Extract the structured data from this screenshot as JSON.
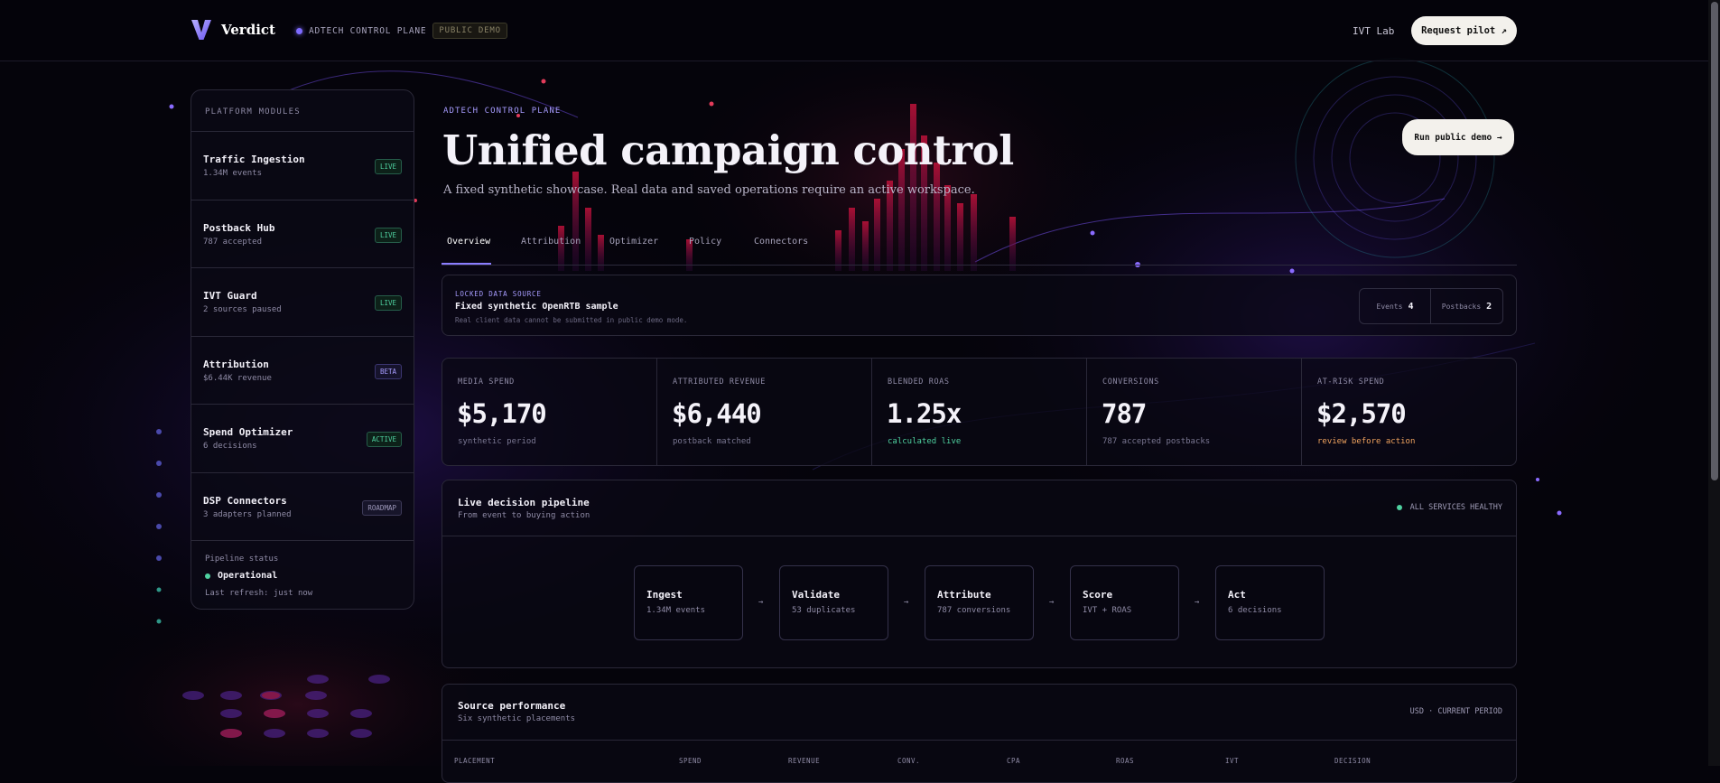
{
  "topbar": {
    "brand": "Verdict",
    "crumb": "ADTECH CONTROL PLANE",
    "badge": "PUBLIC DEMO",
    "ivt_link": "IVT Lab",
    "cta": "Request pilot ↗"
  },
  "sidebar": {
    "header": "PLATFORM MODULES",
    "modules": [
      {
        "title": "Traffic Ingestion",
        "sub": "1.34M events",
        "tag": "LIVE"
      },
      {
        "title": "Postback Hub",
        "sub": "787 accepted",
        "tag": "LIVE"
      },
      {
        "title": "IVT Guard",
        "sub": "2 sources paused",
        "tag": "LIVE"
      },
      {
        "title": "Attribution",
        "sub": "$6.44K revenue",
        "tag": "BETA"
      },
      {
        "title": "Spend Optimizer",
        "sub": "6 decisions",
        "tag": "ACTIVE"
      },
      {
        "title": "DSP Connectors",
        "sub": "3 adapters planned",
        "tag": "ROADMAP"
      }
    ],
    "status_label": "Pipeline status",
    "status_value": "Operational",
    "refresh": "Last refresh: just now"
  },
  "hero": {
    "eyebrow": "ADTECH CONTROL PLANE",
    "title": "Unified campaign control",
    "subtitle": "A fixed synthetic showcase. Real data and saved operations require an active workspace.",
    "demo_button": "Run public demo →"
  },
  "tabs": [
    "Overview",
    "Attribution",
    "Optimizer",
    "Policy",
    "Connectors"
  ],
  "data_source": {
    "eyebrow": "LOCKED DATA SOURCE",
    "title": "Fixed synthetic OpenRTB sample",
    "note": "Real client data cannot be submitted in public demo mode.",
    "events_label": "Events",
    "events_value": "4",
    "postbacks_label": "Postbacks",
    "postbacks_value": "2"
  },
  "stats": [
    {
      "label": "MEDIA SPEND",
      "value": "$5,170",
      "sub": "synthetic period",
      "color": "#7a7792"
    },
    {
      "label": "ATTRIBUTED REVENUE",
      "value": "$6,440",
      "sub": "postback matched",
      "color": "#7a7792"
    },
    {
      "label": "BLENDED ROAS",
      "value": "1.25x",
      "sub": "calculated live",
      "color": "#4fd1a0"
    },
    {
      "label": "CONVERSIONS",
      "value": "787",
      "sub": "787 accepted postbacks",
      "color": "#7a7792"
    },
    {
      "label": "AT-RISK SPEND",
      "value": "$2,570",
      "sub": "review before action",
      "color": "#f0a35e"
    }
  ],
  "pipeline": {
    "title": "Live decision pipeline",
    "subtitle": "From event to buying action",
    "health": "ALL SERVICES HEALTHY",
    "steps": [
      {
        "title": "Ingest",
        "sub": "1.34M events"
      },
      {
        "title": "Validate",
        "sub": "53 duplicates"
      },
      {
        "title": "Attribute",
        "sub": "787 conversions"
      },
      {
        "title": "Score",
        "sub": "IVT + ROAS"
      },
      {
        "title": "Act",
        "sub": "6 decisions"
      }
    ],
    "arrow": "→"
  },
  "sources": {
    "title": "Source performance",
    "subtitle": "Six synthetic placements",
    "meta": "USD · CURRENT PERIOD",
    "columns": [
      "PLACEMENT",
      "SPEND",
      "REVENUE",
      "CONV.",
      "CPA",
      "ROAS",
      "IVT",
      "DECISION"
    ]
  }
}
